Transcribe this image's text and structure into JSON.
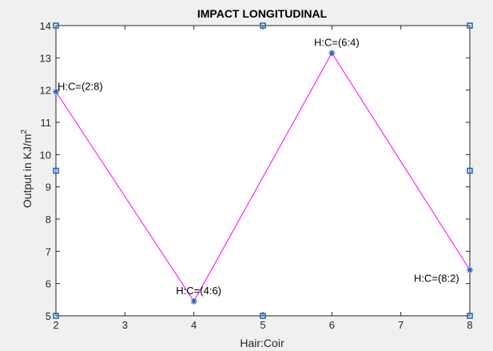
{
  "chart_data": {
    "type": "line",
    "title": "IMPACT LONGITUDINAL",
    "xlabel": "Hair:Coir",
    "ylabel_main": "Output in KJ/m",
    "ylabel_superscript": "2",
    "xlim": [
      2,
      8
    ],
    "ylim": [
      5,
      14
    ],
    "xticks": [
      2,
      3,
      4,
      5,
      6,
      7,
      8
    ],
    "yticks": [
      5,
      6,
      7,
      8,
      9,
      10,
      11,
      12,
      13,
      14
    ],
    "grid": false,
    "series": [
      {
        "x": [
          2,
          4,
          6,
          8
        ],
        "y": [
          11.95,
          5.45,
          13.15,
          6.42
        ],
        "line_color": "#ff00ff",
        "marker_color": "#1f5fbf",
        "marker": "asterisk"
      }
    ],
    "annotations": [
      {
        "text": "H:C=(2:8)",
        "x": 2,
        "y": 11.95,
        "anchor": "right"
      },
      {
        "text": "H:C=(4:6)",
        "x": 4,
        "y": 5.45,
        "anchor": "above"
      },
      {
        "text": "H:C=(6:4)",
        "x": 6,
        "y": 13.15,
        "anchor": "above"
      },
      {
        "text": "H:C=(8:2)",
        "x": 8,
        "y": 6.42,
        "anchor": "left-below"
      }
    ],
    "square_markers": [
      {
        "x": 2,
        "y": 14
      },
      {
        "x": 5,
        "y": 14
      },
      {
        "x": 8,
        "y": 14
      },
      {
        "x": 2,
        "y": 9.5
      },
      {
        "x": 8,
        "y": 9.5
      },
      {
        "x": 2,
        "y": 5
      },
      {
        "x": 5,
        "y": 5
      },
      {
        "x": 8,
        "y": 5
      }
    ],
    "colors": {
      "background": "#f0f0f0",
      "axes_background": "#ffffff",
      "axis": "#262626",
      "square_marker": "#1f5fbf"
    }
  }
}
